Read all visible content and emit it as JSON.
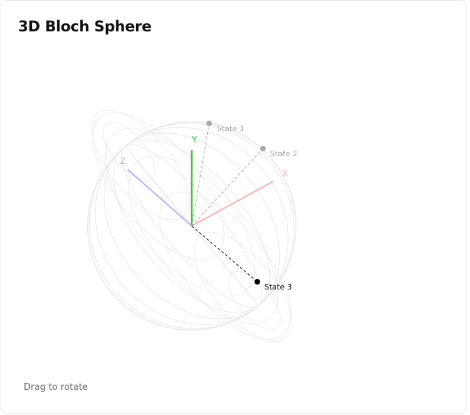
{
  "header": {
    "title": "3D Bloch Sphere"
  },
  "footer": {
    "hint": "Drag to rotate"
  },
  "axes": [
    {
      "id": "x",
      "label": "X",
      "color": "#f4b3b3"
    },
    {
      "id": "y",
      "label": "Y",
      "color": "#33cc33"
    },
    {
      "id": "z",
      "label": "Z",
      "color": "#b5b3f2"
    }
  ],
  "states": [
    {
      "label": "State 1",
      "color": "#a8a8a8"
    },
    {
      "label": "State 2",
      "color": "#a8a8a8"
    },
    {
      "label": "State 3",
      "color": "#000000"
    }
  ]
}
